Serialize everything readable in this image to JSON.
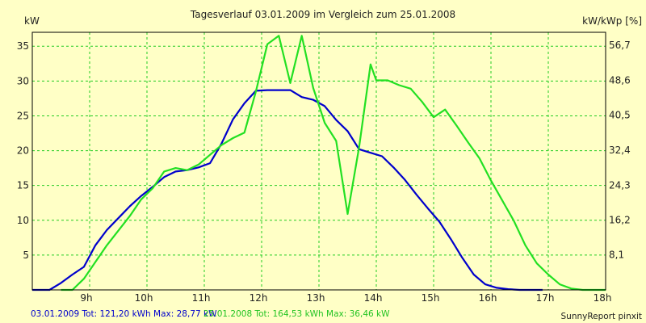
{
  "chart_data": {
    "type": "line",
    "title": "Tagesverlauf 03.01.2009 im Vergleich zum 25.01.2008",
    "ylabel_left": "kW",
    "ylabel_right": "kW/kWp [%]",
    "xlim": [
      8.0,
      18.0
    ],
    "ylim": [
      0,
      37
    ],
    "x_ticks": [
      9,
      10,
      11,
      12,
      13,
      14,
      15,
      16,
      17,
      18
    ],
    "x_tick_labels": [
      "9h",
      "10h",
      "11h",
      "12h",
      "13h",
      "14h",
      "15h",
      "16h",
      "17h",
      "18h"
    ],
    "y_ticks": [
      5,
      10,
      15,
      20,
      25,
      30,
      35
    ],
    "y_tick_labels": [
      "5",
      "10",
      "15",
      "20",
      "25",
      "30",
      "35"
    ],
    "y2_ticks": [
      5.03,
      10.06,
      15.03,
      20.06,
      25.09,
      30.12,
      35.15
    ],
    "y2_tick_labels": [
      "8,1",
      "16,2",
      "24,3",
      "32,4",
      "40,5",
      "48,6",
      "56,7"
    ],
    "grid": true,
    "series": [
      {
        "color": "#0000cc",
        "x": [
          8.0,
          8.3,
          8.5,
          8.7,
          8.9,
          9.1,
          9.3,
          9.5,
          9.7,
          9.9,
          10.1,
          10.3,
          10.5,
          10.7,
          10.9,
          11.1,
          11.3,
          11.5,
          11.7,
          11.9,
          12.1,
          12.3,
          12.5,
          12.7,
          12.9,
          13.1,
          13.3,
          13.5,
          13.7,
          13.9,
          14.1,
          14.3,
          14.5,
          14.7,
          14.9,
          15.1,
          15.3,
          15.5,
          15.7,
          15.9,
          16.1,
          16.3,
          16.5,
          16.7,
          16.9
        ],
        "y": [
          0,
          0,
          1.0,
          2.2,
          3.3,
          6.4,
          8.6,
          10.3,
          12.0,
          13.5,
          14.8,
          16.2,
          17.0,
          17.2,
          17.6,
          18.2,
          21.0,
          24.5,
          26.8,
          28.6,
          28.7,
          28.7,
          28.7,
          27.7,
          27.3,
          26.4,
          24.4,
          22.8,
          20.2,
          19.7,
          19.2,
          17.6,
          15.8,
          13.7,
          11.7,
          9.8,
          7.3,
          4.6,
          2.2,
          0.8,
          0.3,
          0.1,
          0,
          0,
          0
        ]
      },
      {
        "color": "#22e022",
        "x": [
          8.5,
          8.7,
          8.9,
          9.1,
          9.3,
          9.5,
          9.7,
          9.9,
          10.1,
          10.3,
          10.5,
          10.7,
          10.9,
          11.1,
          11.3,
          11.5,
          11.7,
          11.9,
          12.1,
          12.3,
          12.5,
          12.7,
          12.9,
          13.1,
          13.3,
          13.5,
          13.7,
          13.9,
          14.0,
          14.2,
          14.4,
          14.6,
          14.8,
          15.0,
          15.2,
          15.4,
          15.6,
          15.8,
          16.0,
          16.2,
          16.4,
          16.6,
          16.8,
          17.0,
          17.2,
          17.4,
          17.6,
          17.8,
          18.0
        ],
        "y": [
          0,
          0,
          1.6,
          4.0,
          6.4,
          8.5,
          10.6,
          13.0,
          14.6,
          17.0,
          17.5,
          17.2,
          18.0,
          19.4,
          20.8,
          21.8,
          22.6,
          28.5,
          35.3,
          36.5,
          29.7,
          36.5,
          29.0,
          24.0,
          21.4,
          10.9,
          20.5,
          32.4,
          30.1,
          30.1,
          29.4,
          28.9,
          27.0,
          24.8,
          25.9,
          23.6,
          21.2,
          18.9,
          15.7,
          12.8,
          9.9,
          6.4,
          3.8,
          2.2,
          0.8,
          0.2,
          0,
          0,
          0
        ]
      }
    ],
    "footer": {
      "legend_1": "03.01.2009 Tot: 121,20 kWh Max: 28,77 kW",
      "legend_2": "25.01.2008 Tot: 164,53 kWh Max: 36,46 kW",
      "credit": "SunnyReport pinxit"
    }
  }
}
